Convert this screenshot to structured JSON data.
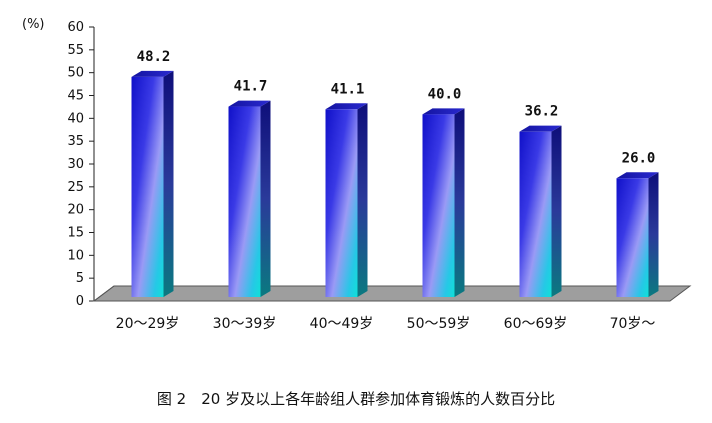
{
  "chart_data": {
    "type": "bar",
    "y_unit_label": "(%)",
    "categories": [
      "20～29岁",
      "30～39岁",
      "40～49岁",
      "50～59岁",
      "60～69岁",
      "70岁～"
    ],
    "values": [
      48.2,
      41.7,
      41.1,
      40.0,
      36.2,
      26.0
    ],
    "value_labels": [
      "48.2",
      "41.7",
      "41.1",
      "40.0",
      "36.2",
      "26.0"
    ],
    "ylim": [
      0,
      60
    ],
    "y_ticks": [
      "0",
      "5",
      "10",
      "15",
      "20",
      "25",
      "30",
      "35",
      "40",
      "45",
      "50",
      "55",
      "60"
    ],
    "grid": false,
    "style": "3d-cylinder-gradient",
    "colors": {
      "bar_dark": "#1a1ad4",
      "bar_mid": "#8a8af5",
      "bar_light": "#19e6e0",
      "floor": "#9a9a9a"
    }
  },
  "caption": "图 2　20 岁及以上各年龄组人群参加体育锻炼的人数百分比"
}
